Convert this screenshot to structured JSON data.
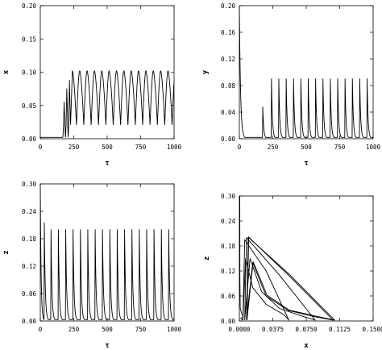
{
  "chart_data": [
    {
      "id": "x-vs-tau",
      "type": "line",
      "xlabel": "τ",
      "ylabel": "x",
      "xlim": [
        0,
        1000
      ],
      "ylim": [
        0,
        0.2
      ],
      "xticks": [
        0,
        250,
        500,
        750,
        1000
      ],
      "yticks": [
        0.0,
        0.05,
        0.1,
        0.15,
        0.2
      ],
      "xtick_labels": [
        "0",
        "250",
        "500",
        "750",
        "1000"
      ],
      "ytick_labels": [
        "0.00",
        "0.05",
        "0.10",
        "0.15",
        "0.20"
      ],
      "grid": false,
      "pattern": {
        "flat_until": 150,
        "transient_peaks": [
          [
            178,
            0.055
          ],
          [
            198,
            0.075
          ],
          [
            218,
            0.088
          ]
        ],
        "first_full_peak": 240,
        "period": 55,
        "peak": 0.102,
        "trough": 0.02,
        "end_value": 0.09
      },
      "series": [
        {
          "values": []
        }
      ]
    },
    {
      "id": "y-vs-tau",
      "type": "line",
      "xlabel": "τ",
      "ylabel": "y",
      "xlim": [
        0,
        1000
      ],
      "ylim": [
        0,
        0.2
      ],
      "xticks": [
        0,
        250,
        500,
        750,
        1000
      ],
      "yticks": [
        0.0,
        0.04,
        0.08,
        0.12,
        0.16,
        0.2
      ],
      "xtick_labels": [
        "0",
        "250",
        "500",
        "750",
        "1000"
      ],
      "ytick_labels": [
        "0.00",
        "0.04",
        "0.08",
        "0.12",
        "0.16",
        "0.20"
      ],
      "grid": false,
      "pattern": {
        "initial_value": 0.2,
        "initial_decay_end": 45,
        "small_spike": [
          175,
          0.048
        ],
        "first_spike": 240,
        "period": 55,
        "peak": 0.09,
        "baseline": 0.002
      },
      "series": [
        {
          "values": []
        }
      ]
    },
    {
      "id": "z-vs-tau",
      "type": "line",
      "xlabel": "τ",
      "ylabel": "z",
      "xlim": [
        0,
        1000
      ],
      "ylim": [
        0,
        0.3
      ],
      "xticks": [
        0,
        250,
        500,
        750,
        1000
      ],
      "yticks": [
        0.0,
        0.06,
        0.12,
        0.18,
        0.24,
        0.3
      ],
      "xtick_labels": [
        "0",
        "250",
        "500",
        "750",
        "1000"
      ],
      "ytick_labels": [
        "0.00",
        "0.06",
        "0.12",
        "0.18",
        "0.24",
        "0.30"
      ],
      "grid": false,
      "pattern": {
        "initial_value": 0.3,
        "first_spike": [
          30,
          0.215
        ],
        "second_spike": 80,
        "period": 55,
        "peak": 0.2,
        "baseline": 0.003
      },
      "series": [
        {
          "values": []
        }
      ]
    },
    {
      "id": "z-vs-x-phase",
      "type": "line",
      "xlabel": "x",
      "ylabel": "z",
      "xlim": [
        0,
        0.15
      ],
      "ylim": [
        0,
        0.3
      ],
      "xticks": [
        0,
        0.0375,
        0.075,
        0.1125,
        0.15
      ],
      "yticks": [
        0.0,
        0.06,
        0.12,
        0.18,
        0.24,
        0.3
      ],
      "xtick_labels": [
        "0.0000",
        "0.0375",
        "0.0750",
        "0.1125",
        "0.1500"
      ],
      "ytick_labels": [
        "0.00",
        "0.06",
        "0.12",
        "0.18",
        "0.24",
        "0.30"
      ],
      "grid": false,
      "series": [
        {
          "role": "transient-start",
          "x": [
            0.0005,
            0.0006,
            0.001,
            0.003,
            0.0045,
            0.003,
            0.0015,
            0.004
          ],
          "y": [
            0.3,
            0.1,
            0.03,
            0.015,
            0.01,
            0.008,
            0.006,
            0.002
          ]
        },
        {
          "role": "loop-1",
          "x": [
            0.004,
            0.006,
            0.03,
            0.0555,
            0.05,
            0.03,
            0.015,
            0.007,
            0.004
          ],
          "y": [
            0.002,
            0.195,
            0.12,
            0.002,
            0.015,
            0.04,
            0.08,
            0.15,
            0.002
          ]
        },
        {
          "role": "loop-2",
          "x": [
            0.006,
            0.008,
            0.045,
            0.085,
            0.07,
            0.045,
            0.025,
            0.012,
            0.006
          ],
          "y": [
            0.002,
            0.2,
            0.11,
            0.002,
            0.012,
            0.03,
            0.07,
            0.15,
            0.002
          ]
        },
        {
          "role": "limit-cycle",
          "x": [
            0.008,
            0.01,
            0.055,
            0.105,
            0.085,
            0.055,
            0.03,
            0.015,
            0.008
          ],
          "y": [
            0.002,
            0.202,
            0.11,
            0.002,
            0.01,
            0.025,
            0.06,
            0.14,
            0.002
          ]
        },
        {
          "role": "limit-cycle-repeat",
          "x": [
            0.0085,
            0.0105,
            0.056,
            0.107,
            0.087,
            0.056,
            0.031,
            0.0155,
            0.0085
          ],
          "y": [
            0.002,
            0.2,
            0.112,
            0.002,
            0.011,
            0.026,
            0.062,
            0.142,
            0.002
          ]
        }
      ]
    }
  ]
}
